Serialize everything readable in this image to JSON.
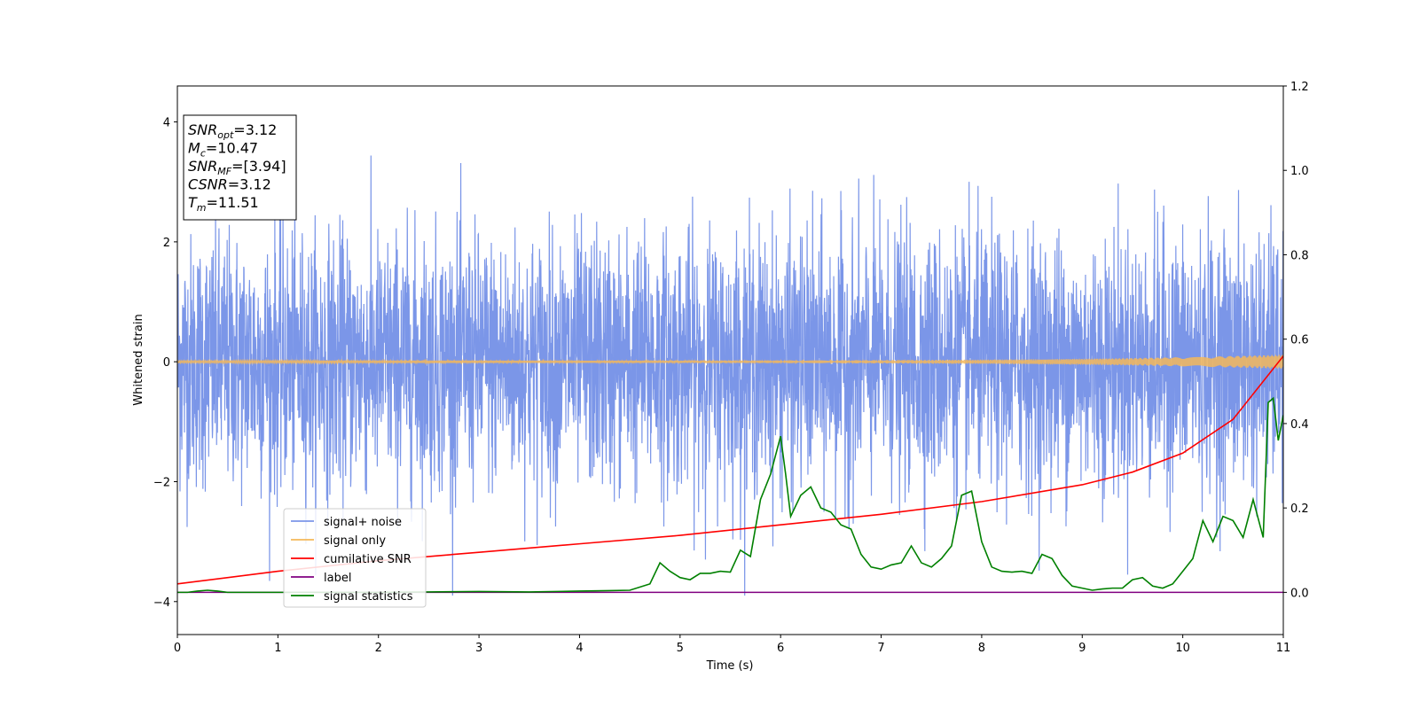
{
  "chart_data": {
    "type": "line",
    "title": "",
    "xlabel": "Time (s)",
    "ylabel": "Whitened strain",
    "xlim": [
      0,
      11
    ],
    "ylim_left": [
      -4.55,
      4.6
    ],
    "ylim_right": [
      -0.1,
      1.2
    ],
    "x_ticks": [
      0,
      1,
      2,
      3,
      4,
      5,
      6,
      7,
      8,
      9,
      10,
      11
    ],
    "y_left_ticks": [
      -4,
      -2,
      0,
      2,
      4
    ],
    "y_left_tick_labels": [
      "−4",
      "−2",
      "0",
      "2",
      "4"
    ],
    "y_right_ticks": [
      0.0,
      0.2,
      0.4,
      0.6,
      0.8,
      1.0,
      1.2
    ],
    "y_right_tick_labels": [
      "0.0",
      "0.2",
      "0.4",
      "0.6",
      "0.8",
      "1.0",
      "1.2"
    ],
    "grid": false,
    "legend_position": "lower-left",
    "annotation": {
      "lines": [
        {
          "sym": "SNR",
          "sub": "opt",
          "val": "=3.12"
        },
        {
          "sym": "M",
          "sub": "c",
          "val": "=10.47"
        },
        {
          "sym": "SNR",
          "sub": "MF",
          "val": "=[3.94]"
        },
        {
          "sym": "CSNR",
          "sub": "",
          "val": "=3.12"
        },
        {
          "sym": "T",
          "sub": "m",
          "val": "=11.51"
        }
      ]
    },
    "series": [
      {
        "name": "signal+ noise",
        "axis": "left",
        "color": "#7b96e8",
        "kind": "noise",
        "envelope_upper": 3.8,
        "envelope_lower": -3.9
      },
      {
        "name": "signal only",
        "axis": "left",
        "color": "#f5b85a",
        "kind": "chirp",
        "amplitude_start": 0.02,
        "amplitude_end": 0.12
      },
      {
        "name": "cumilative SNR",
        "axis": "right",
        "color": "#ff0000",
        "x": [
          0,
          1,
          2,
          3,
          4,
          5,
          6,
          7,
          8,
          9,
          9.5,
          10,
          10.5,
          11
        ],
        "y": [
          0.02,
          0.05,
          0.075,
          0.095,
          0.115,
          0.135,
          0.16,
          0.185,
          0.215,
          0.255,
          0.285,
          0.33,
          0.41,
          0.56
        ]
      },
      {
        "name": "label",
        "axis": "right",
        "color": "#800080",
        "x": [
          0,
          11
        ],
        "y": [
          0.0,
          0.0
        ]
      },
      {
        "name": "signal statistics",
        "axis": "right",
        "color": "#008000",
        "x": [
          0,
          0.1,
          0.2,
          0.3,
          0.4,
          0.5,
          1,
          2,
          3,
          3.5,
          4,
          4.3,
          4.5,
          4.7,
          4.8,
          4.9,
          5.0,
          5.1,
          5.2,
          5.3,
          5.4,
          5.5,
          5.6,
          5.7,
          5.8,
          5.9,
          6.0,
          6.05,
          6.1,
          6.2,
          6.3,
          6.4,
          6.5,
          6.6,
          6.7,
          6.8,
          6.9,
          7.0,
          7.1,
          7.2,
          7.3,
          7.4,
          7.5,
          7.6,
          7.7,
          7.8,
          7.9,
          8.0,
          8.1,
          8.2,
          8.3,
          8.4,
          8.5,
          8.6,
          8.7,
          8.8,
          8.9,
          9.0,
          9.1,
          9.2,
          9.3,
          9.4,
          9.5,
          9.6,
          9.7,
          9.8,
          9.9,
          10.0,
          10.1,
          10.2,
          10.3,
          10.4,
          10.5,
          10.6,
          10.7,
          10.8,
          10.85,
          10.9,
          10.95,
          11.0
        ],
        "y": [
          0.0,
          0.0,
          0.003,
          0.005,
          0.003,
          0.0,
          0.0,
          0.0,
          0.002,
          0.001,
          0.003,
          0.004,
          0.005,
          0.02,
          0.07,
          0.05,
          0.035,
          0.03,
          0.045,
          0.045,
          0.05,
          0.048,
          0.1,
          0.085,
          0.22,
          0.28,
          0.37,
          0.28,
          0.18,
          0.23,
          0.25,
          0.2,
          0.19,
          0.16,
          0.15,
          0.09,
          0.06,
          0.055,
          0.065,
          0.07,
          0.11,
          0.07,
          0.06,
          0.08,
          0.11,
          0.23,
          0.24,
          0.12,
          0.06,
          0.05,
          0.048,
          0.05,
          0.045,
          0.09,
          0.08,
          0.04,
          0.015,
          0.01,
          0.005,
          0.008,
          0.01,
          0.01,
          0.03,
          0.035,
          0.015,
          0.01,
          0.02,
          0.05,
          0.08,
          0.17,
          0.12,
          0.18,
          0.17,
          0.13,
          0.22,
          0.13,
          0.45,
          0.46,
          0.36,
          0.42
        ]
      }
    ]
  }
}
